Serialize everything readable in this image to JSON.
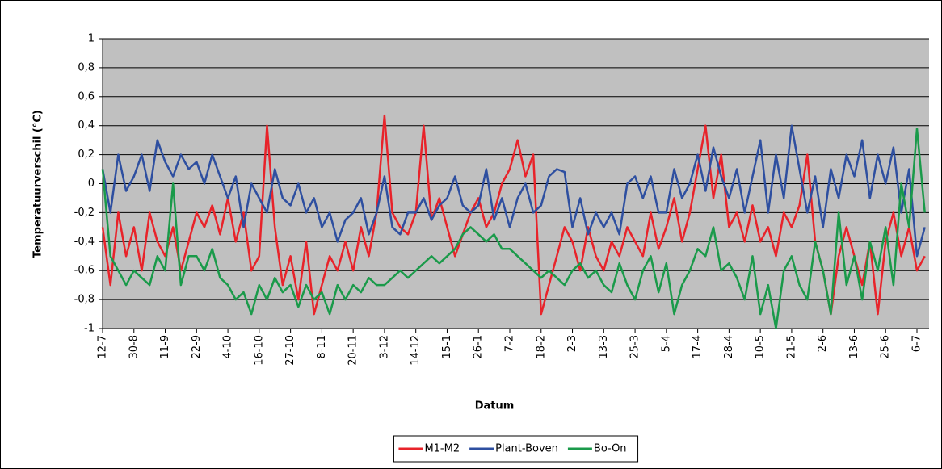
{
  "chart_data": {
    "type": "line",
    "ylabel": "Temperatuurverschil (°C)",
    "xlabel": "Datum",
    "categories": [
      "12-7",
      null,
      null,
      null,
      "30-8",
      null,
      null,
      null,
      "11-9",
      null,
      null,
      null,
      "22-9",
      null,
      null,
      null,
      "4-10",
      null,
      null,
      null,
      "16-10",
      null,
      null,
      null,
      "27-10",
      null,
      null,
      null,
      "8-11",
      null,
      null,
      null,
      "20-11",
      null,
      null,
      null,
      "3-12",
      null,
      null,
      null,
      "14-12",
      null,
      null,
      null,
      "15-1",
      null,
      null,
      null,
      "26-1",
      null,
      null,
      null,
      "7-2",
      null,
      null,
      null,
      "18-2",
      null,
      null,
      null,
      "2-3",
      null,
      null,
      null,
      "13-3",
      null,
      null,
      null,
      "25-3",
      null,
      null,
      null,
      "5-4",
      null,
      null,
      null,
      "17-4",
      null,
      null,
      null,
      "28-4",
      null,
      null,
      null,
      "10-5",
      null,
      null,
      null,
      "21-5",
      null,
      null,
      null,
      "2-6",
      null,
      null,
      null,
      "13-6",
      null,
      null,
      null,
      "25-6",
      null,
      null,
      null,
      "6-7",
      null
    ],
    "series": [
      {
        "name": "M1-M2",
        "color": "#e8232a",
        "values": [
          -0.3,
          -0.7,
          -0.2,
          -0.5,
          -0.3,
          -0.6,
          -0.2,
          -0.4,
          -0.5,
          -0.3,
          -0.6,
          -0.4,
          -0.2,
          -0.3,
          -0.15,
          -0.35,
          -0.1,
          -0.4,
          -0.2,
          -0.6,
          -0.5,
          0.4,
          -0.3,
          -0.7,
          -0.5,
          -0.8,
          -0.4,
          -0.9,
          -0.7,
          -0.5,
          -0.6,
          -0.4,
          -0.6,
          -0.3,
          -0.5,
          -0.2,
          0.47,
          -0.2,
          -0.3,
          -0.35,
          -0.2,
          0.4,
          -0.25,
          -0.1,
          -0.3,
          -0.5,
          -0.35,
          -0.2,
          -0.1,
          -0.3,
          -0.2,
          0.0,
          0.1,
          0.3,
          0.05,
          0.2,
          -0.9,
          -0.7,
          -0.5,
          -0.3,
          -0.4,
          -0.6,
          -0.3,
          -0.5,
          -0.6,
          -0.4,
          -0.5,
          -0.3,
          -0.4,
          -0.5,
          -0.2,
          -0.45,
          -0.3,
          -0.1,
          -0.4,
          -0.2,
          0.1,
          0.4,
          -0.1,
          0.2,
          -0.3,
          -0.2,
          -0.4,
          -0.15,
          -0.4,
          -0.3,
          -0.5,
          -0.2,
          -0.3,
          -0.15,
          0.2,
          -0.4,
          -0.6,
          -0.9,
          -0.5,
          -0.3,
          -0.5,
          -0.7,
          -0.4,
          -0.9,
          -0.4,
          -0.2,
          -0.5,
          -0.3,
          -0.6,
          -0.5
        ]
      },
      {
        "name": "Plant-Boven",
        "color": "#2e4fa0",
        "values": [
          0.1,
          -0.2,
          0.2,
          -0.05,
          0.05,
          0.2,
          -0.05,
          0.3,
          0.15,
          0.05,
          0.2,
          0.1,
          0.15,
          0.0,
          0.2,
          0.05,
          -0.1,
          0.05,
          -0.3,
          0.0,
          -0.1,
          -0.2,
          0.1,
          -0.1,
          -0.15,
          0.0,
          -0.2,
          -0.1,
          -0.3,
          -0.2,
          -0.4,
          -0.25,
          -0.2,
          -0.1,
          -0.35,
          -0.2,
          0.05,
          -0.3,
          -0.35,
          -0.2,
          -0.2,
          -0.1,
          -0.25,
          -0.15,
          -0.1,
          0.05,
          -0.15,
          -0.2,
          -0.15,
          0.1,
          -0.25,
          -0.1,
          -0.3,
          -0.1,
          0.0,
          -0.2,
          -0.15,
          0.05,
          0.1,
          0.08,
          -0.3,
          -0.1,
          -0.35,
          -0.2,
          -0.3,
          -0.2,
          -0.35,
          0.0,
          0.05,
          -0.1,
          0.05,
          -0.2,
          -0.2,
          0.1,
          -0.1,
          0.0,
          0.2,
          -0.05,
          0.25,
          0.05,
          -0.1,
          0.1,
          -0.2,
          0.05,
          0.3,
          -0.2,
          0.2,
          -0.1,
          0.4,
          0.1,
          -0.2,
          0.05,
          -0.3,
          0.1,
          -0.1,
          0.2,
          0.05,
          0.3,
          -0.1,
          0.2,
          0.0,
          0.25,
          -0.2,
          0.1,
          -0.5,
          -0.3
        ]
      },
      {
        "name": "Bo-On",
        "color": "#1a9a4a",
        "values": [
          0.1,
          -0.5,
          -0.6,
          -0.7,
          -0.6,
          -0.65,
          -0.7,
          -0.5,
          -0.6,
          0.0,
          -0.7,
          -0.5,
          -0.5,
          -0.6,
          -0.45,
          -0.65,
          -0.7,
          -0.8,
          -0.75,
          -0.9,
          -0.7,
          -0.8,
          -0.65,
          -0.75,
          -0.7,
          -0.85,
          -0.7,
          -0.8,
          -0.75,
          -0.9,
          -0.7,
          -0.8,
          -0.7,
          -0.75,
          -0.65,
          -0.7,
          -0.7,
          -0.65,
          -0.6,
          -0.65,
          -0.6,
          -0.55,
          -0.5,
          -0.55,
          -0.5,
          -0.45,
          -0.35,
          -0.3,
          -0.35,
          -0.4,
          -0.35,
          -0.45,
          -0.45,
          -0.5,
          -0.55,
          -0.6,
          -0.65,
          -0.6,
          -0.65,
          -0.7,
          -0.6,
          -0.55,
          -0.65,
          -0.6,
          -0.7,
          -0.75,
          -0.55,
          -0.7,
          -0.8,
          -0.6,
          -0.5,
          -0.75,
          -0.55,
          -0.9,
          -0.7,
          -0.6,
          -0.45,
          -0.5,
          -0.3,
          -0.6,
          -0.55,
          -0.65,
          -0.8,
          -0.5,
          -0.9,
          -0.7,
          -1.0,
          -0.6,
          -0.5,
          -0.7,
          -0.8,
          -0.4,
          -0.6,
          -0.9,
          -0.2,
          -0.7,
          -0.5,
          -0.8,
          -0.4,
          -0.6,
          -0.3,
          -0.7,
          0.0,
          -0.3,
          0.38,
          -0.2
        ]
      }
    ],
    "ylim": [
      -1,
      1
    ],
    "yticks": [
      -1,
      {
        "value": -0.8,
        "label": "-0,8"
      },
      {
        "value": -0.6,
        "label": "-0,6"
      },
      {
        "value": -0.4,
        "label": "-0,4"
      },
      {
        "value": -0.2,
        "label": "-0,2"
      },
      0,
      {
        "value": 0.2,
        "label": "0,2"
      },
      {
        "value": 0.4,
        "label": "0,4"
      },
      {
        "value": 0.6,
        "label": "0,6"
      },
      {
        "value": 0.8,
        "label": "0,8"
      },
      1
    ],
    "grid": true,
    "plot_background": "#c0c0c0",
    "legend": "bottom"
  }
}
